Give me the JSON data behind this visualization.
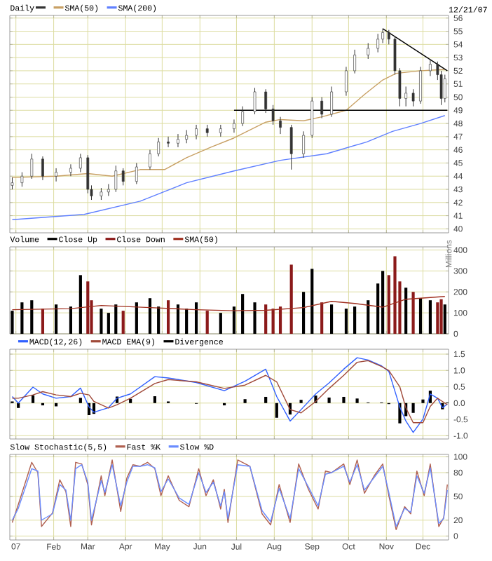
{
  "chart_data": [
    {
      "type": "candlestick",
      "title": "Daily",
      "color": "#333333",
      "legend": "top left",
      "grid": true,
      "tick_labels": "y",
      "annotations": [
        "12/21/07"
      ],
      "xlim": [
        "2006-12-27",
        "2007-12-22"
      ],
      "ylim": [
        39.7,
        56.2
      ],
      "yticks": [
        40,
        41,
        42,
        43,
        44,
        45,
        46,
        47,
        48,
        49,
        50,
        51,
        52,
        53,
        54,
        55,
        56
      ],
      "xticks": [
        {
          "value": "2007-01-01",
          "label": null
        },
        {
          "value": "2007-02-01",
          "label": null
        },
        {
          "value": "2007-03-01",
          "label": null
        },
        {
          "value": "2007-04-01",
          "label": null
        },
        {
          "value": "2007-05-01",
          "label": null
        },
        {
          "value": "2007-06-01",
          "label": null
        },
        {
          "value": "2007-07-01",
          "label": null
        },
        {
          "value": "2007-08-01",
          "label": null
        },
        {
          "value": "2007-09-01",
          "label": null
        },
        {
          "value": "2007-10-01",
          "label": null
        },
        {
          "value": "2007-11-01",
          "label": null
        },
        {
          "value": "2007-12-01",
          "label": null
        }
      ],
      "x": [
        "2006-12-29",
        "2007-01-06",
        "2007-01-14",
        "2007-01-23",
        "2007-02-03",
        "2007-02-15",
        "2007-02-23",
        "2007-03-01",
        "2007-03-04",
        "2007-03-12",
        "2007-03-18",
        "2007-03-24",
        "2007-03-30",
        "2007-04-10",
        "2007-04-21",
        "2007-04-28",
        "2007-05-06",
        "2007-05-14",
        "2007-05-21",
        "2007-05-29",
        "2007-06-07",
        "2007-06-18",
        "2007-06-29",
        "2007-07-06",
        "2007-07-16",
        "2007-07-25",
        "2007-07-31",
        "2007-08-06",
        "2007-08-15",
        "2007-08-25",
        "2007-09-01",
        "2007-09-09",
        "2007-09-17",
        "2007-09-29",
        "2007-10-06",
        "2007-10-17",
        "2007-10-25",
        "2007-10-29",
        "2007-11-03",
        "2007-11-08",
        "2007-11-12",
        "2007-11-17",
        "2007-11-23",
        "2007-11-29",
        "2007-12-07",
        "2007-12-13",
        "2007-12-16",
        "2007-12-19"
      ],
      "ohlc": [
        [
          43.3,
          43.9,
          43.0,
          43.5
        ],
        [
          43.5,
          44.3,
          43.2,
          44.0
        ],
        [
          44.0,
          45.7,
          43.8,
          45.3
        ],
        [
          45.3,
          45.5,
          43.7,
          44.0
        ],
        [
          44.0,
          44.6,
          43.6,
          44.3
        ],
        [
          44.3,
          44.9,
          44.0,
          44.6
        ],
        [
          44.6,
          45.7,
          44.3,
          45.4
        ],
        [
          45.4,
          45.6,
          42.7,
          43.0
        ],
        [
          43.0,
          43.3,
          42.2,
          42.5
        ],
        [
          42.5,
          43.1,
          42.2,
          42.8
        ],
        [
          42.8,
          43.4,
          42.5,
          43.0
        ],
        [
          43.0,
          44.8,
          42.8,
          44.4
        ],
        [
          44.4,
          44.6,
          43.3,
          43.6
        ],
        [
          43.6,
          45.0,
          43.4,
          44.7
        ],
        [
          44.7,
          46.0,
          44.5,
          45.7
        ],
        [
          45.7,
          46.9,
          45.5,
          46.6
        ],
        [
          46.6,
          47.0,
          46.2,
          46.5
        ],
        [
          46.5,
          47.2,
          46.2,
          46.8
        ],
        [
          46.8,
          47.5,
          46.5,
          47.1
        ],
        [
          47.1,
          47.9,
          46.8,
          47.6
        ],
        [
          47.6,
          47.9,
          47.0,
          47.3
        ],
        [
          47.3,
          47.9,
          47.0,
          47.6
        ],
        [
          47.6,
          48.3,
          47.3,
          48.0
        ],
        [
          48.0,
          49.3,
          47.8,
          48.9
        ],
        [
          48.9,
          50.7,
          48.7,
          50.4
        ],
        [
          50.4,
          50.6,
          48.8,
          49.1
        ],
        [
          49.1,
          49.4,
          47.9,
          48.2
        ],
        [
          48.2,
          48.5,
          47.2,
          47.7
        ],
        [
          47.7,
          47.9,
          44.5,
          45.7
        ],
        [
          45.7,
          47.4,
          45.4,
          47.1
        ],
        [
          47.1,
          50.0,
          46.9,
          49.7
        ],
        [
          49.7,
          50.0,
          48.4,
          48.7
        ],
        [
          48.7,
          50.8,
          48.5,
          50.4
        ],
        [
          50.4,
          52.3,
          50.1,
          52.0
        ],
        [
          52.0,
          53.6,
          51.8,
          53.2
        ],
        [
          53.2,
          54.1,
          52.9,
          53.7
        ],
        [
          53.7,
          54.8,
          53.4,
          54.4
        ],
        [
          54.4,
          55.2,
          54.1,
          54.9
        ],
        [
          54.9,
          55.1,
          54.0,
          54.4
        ],
        [
          54.4,
          54.6,
          51.7,
          52.0
        ],
        [
          52.0,
          52.2,
          49.3,
          49.9
        ],
        [
          49.9,
          50.8,
          49.3,
          50.3
        ],
        [
          50.3,
          50.6,
          49.3,
          49.7
        ],
        [
          49.7,
          52.3,
          49.5,
          52.0
        ],
        [
          52.0,
          52.8,
          51.6,
          52.5
        ],
        [
          52.5,
          52.7,
          51.3,
          51.7
        ],
        [
          51.7,
          52.0,
          49.4,
          49.9
        ],
        [
          49.9,
          51.7,
          49.6,
          51.4
        ]
      ],
      "series": [
        {
          "name": "SMA(50)",
          "type": "line",
          "color": "#c8a064",
          "x": [
            "2006-12-29",
            "2007-02-03",
            "2007-03-01",
            "2007-03-21",
            "2007-04-13",
            "2007-05-03",
            "2007-05-21",
            "2007-06-10",
            "2007-06-29",
            "2007-07-25",
            "2007-08-06",
            "2007-08-25",
            "2007-09-09",
            "2007-09-29",
            "2007-10-14",
            "2007-10-29",
            "2007-11-09",
            "2007-11-29",
            "2007-12-19"
          ],
          "values": [
            43.9,
            44.0,
            44.2,
            44.0,
            44.5,
            44.5,
            45.4,
            46.2,
            46.9,
            48.1,
            48.3,
            48.2,
            48.5,
            49.0,
            50.2,
            51.3,
            51.8,
            52.0,
            52.1
          ]
        },
        {
          "name": "SMA(200)",
          "type": "line",
          "color": "#6080ff",
          "x": [
            "2006-12-29",
            "2007-02-26",
            "2007-04-13",
            "2007-05-21",
            "2007-06-29",
            "2007-08-06",
            "2007-09-13",
            "2007-10-16",
            "2007-11-06",
            "2007-11-29",
            "2007-12-19"
          ],
          "values": [
            40.7,
            41.1,
            42.1,
            43.5,
            44.4,
            45.2,
            45.7,
            46.6,
            47.4,
            48.0,
            48.6
          ]
        },
        {
          "type": "line",
          "color": "#000000",
          "x": [
            "2007-06-29",
            "2007-12-21"
          ],
          "values": [
            49,
            49
          ]
        },
        {
          "type": "line",
          "color": "#000000",
          "x": [
            "2007-10-29",
            "2007-12-21"
          ],
          "values": [
            55.2,
            52.0
          ]
        }
      ]
    },
    {
      "type": "bar",
      "title": "Volume",
      "ylabel": "Millions",
      "legend": "top left",
      "grid": true,
      "tick_labels": "y",
      "xlim": [
        "2006-12-27",
        "2007-12-22"
      ],
      "ylim": [
        0,
        415
      ],
      "yticks": [
        0,
        100,
        200,
        300,
        400
      ],
      "xticks": [
        {
          "value": "2007-01-01",
          "label": null
        },
        {
          "value": "2007-02-01",
          "label": null
        },
        {
          "value": "2007-03-01",
          "label": null
        },
        {
          "value": "2007-04-01",
          "label": null
        },
        {
          "value": "2007-05-01",
          "label": null
        },
        {
          "value": "2007-06-01",
          "label": null
        },
        {
          "value": "2007-07-01",
          "label": null
        },
        {
          "value": "2007-08-01",
          "label": null
        },
        {
          "value": "2007-09-01",
          "label": null
        },
        {
          "value": "2007-10-01",
          "label": null
        },
        {
          "value": "2007-11-01",
          "label": null
        },
        {
          "value": "2007-12-01",
          "label": null
        }
      ],
      "series": [
        {
          "name": "Close Up",
          "color": "#000000",
          "x": [
            "2006-12-29",
            "2007-01-06",
            "2007-01-14",
            "2007-02-03",
            "2007-02-15",
            "2007-02-23",
            "2007-03-12",
            "2007-03-18",
            "2007-03-24",
            "2007-04-10",
            "2007-04-21",
            "2007-04-28",
            "2007-05-14",
            "2007-05-21",
            "2007-05-29",
            "2007-06-18",
            "2007-06-29",
            "2007-07-06",
            "2007-07-16",
            "2007-08-25",
            "2007-09-01",
            "2007-09-17",
            "2007-09-29",
            "2007-10-06",
            "2007-10-17",
            "2007-10-25",
            "2007-10-29",
            "2007-11-17",
            "2007-11-29",
            "2007-12-07",
            "2007-12-19"
          ],
          "values": [
            110,
            150,
            160,
            140,
            130,
            280,
            120,
            100,
            140,
            150,
            170,
            130,
            140,
            120,
            150,
            100,
            130,
            190,
            150,
            200,
            310,
            140,
            120,
            130,
            160,
            240,
            300,
            220,
            170,
            160,
            140
          ]
        },
        {
          "name": "Close Down",
          "color": "#8b1a1a",
          "x": [
            "2007-01-23",
            "2007-03-01",
            "2007-03-04",
            "2007-03-30",
            "2007-05-06",
            "2007-06-07",
            "2007-07-25",
            "2007-07-31",
            "2007-08-06",
            "2007-08-15",
            "2007-09-09",
            "2007-11-03",
            "2007-11-08",
            "2007-11-12",
            "2007-11-23",
            "2007-12-13",
            "2007-12-16"
          ],
          "values": [
            120,
            250,
            160,
            110,
            160,
            110,
            140,
            120,
            130,
            330,
            150,
            280,
            370,
            250,
            200,
            150,
            165
          ]
        },
        {
          "name": "SMA(50)",
          "type": "line",
          "color": "#a03020",
          "x": [
            "2006-12-29",
            "2007-02-15",
            "2007-03-12",
            "2007-04-21",
            "2007-05-29",
            "2007-06-29",
            "2007-07-25",
            "2007-08-25",
            "2007-09-17",
            "2007-10-06",
            "2007-10-29",
            "2007-11-17",
            "2007-12-19"
          ],
          "values": [
            115,
            120,
            135,
            125,
            115,
            110,
            112,
            125,
            155,
            145,
            127,
            165,
            178
          ]
        }
      ]
    },
    {
      "type": "line",
      "legend": "top left",
      "grid": true,
      "tick_labels": "y",
      "xlim": [
        "2006-12-27",
        "2007-12-22"
      ],
      "ylim": [
        -1.1,
        1.65
      ],
      "yticks": [
        {
          "value": -1,
          "label": "-1.0"
        },
        {
          "value": -0.5,
          "label": "-0.5"
        },
        {
          "value": 0,
          "label": "0.0"
        },
        {
          "value": 0.5,
          "label": "0.5"
        },
        {
          "value": 1,
          "label": "1.0"
        },
        {
          "value": 1.5,
          "label": "1.5"
        }
      ],
      "xticks": [
        {
          "value": "2007-01-01",
          "label": null
        },
        {
          "value": "2007-02-01",
          "label": null
        },
        {
          "value": "2007-03-01",
          "label": null
        },
        {
          "value": "2007-04-01",
          "label": null
        },
        {
          "value": "2007-05-01",
          "label": null
        },
        {
          "value": "2007-06-01",
          "label": null
        },
        {
          "value": "2007-07-01",
          "label": null
        },
        {
          "value": "2007-08-01",
          "label": null
        },
        {
          "value": "2007-09-01",
          "label": null
        },
        {
          "value": "2007-10-01",
          "label": null
        },
        {
          "value": "2007-11-01",
          "label": null
        },
        {
          "value": "2007-12-01",
          "label": null
        }
      ],
      "x": [
        "2006-12-29",
        "2007-01-03",
        "2007-01-15",
        "2007-01-23",
        "2007-02-03",
        "2007-02-15",
        "2007-02-23",
        "2007-03-02",
        "2007-03-06",
        "2007-03-18",
        "2007-03-25",
        "2007-04-05",
        "2007-04-25",
        "2007-05-06",
        "2007-05-29",
        "2007-06-21",
        "2007-07-08",
        "2007-07-25",
        "2007-08-03",
        "2007-08-14",
        "2007-08-23",
        "2007-09-04",
        "2007-09-15",
        "2007-09-27",
        "2007-10-08",
        "2007-10-17",
        "2007-10-28",
        "2007-11-03",
        "2007-11-12",
        "2007-11-17",
        "2007-11-23",
        "2007-12-01",
        "2007-12-07",
        "2007-12-13",
        "2007-12-17",
        "2007-12-21"
      ],
      "series": [
        {
          "name": "MACD(12,26)",
          "color": "#3060ff",
          "values": [
            0.2,
            0.0,
            0.49,
            0.28,
            0.15,
            0.2,
            0.46,
            -0.12,
            -0.28,
            -0.14,
            0.15,
            0.28,
            0.81,
            0.77,
            0.63,
            0.38,
            0.67,
            1.04,
            0.2,
            -0.55,
            -0.2,
            0.28,
            0.62,
            1.04,
            1.39,
            1.32,
            1.14,
            0.97,
            -0.12,
            -0.55,
            -0.9,
            -0.49,
            0.28,
            0.15,
            -0.14,
            -0.03
          ]
        },
        {
          "name": "MACD EMA(9)",
          "color": "#a04a3a",
          "values": [
            0.15,
            0.15,
            0.25,
            0.35,
            0.25,
            0.2,
            0.3,
            0.25,
            0.05,
            -0.15,
            -0.05,
            0.15,
            0.6,
            0.72,
            0.65,
            0.45,
            0.55,
            0.85,
            0.65,
            -0.2,
            -0.3,
            0.05,
            0.45,
            0.85,
            1.25,
            1.3,
            1.12,
            1.0,
            0.5,
            -0.15,
            -0.6,
            -0.6,
            -0.1,
            0.15,
            0.05,
            -0.05
          ]
        },
        {
          "name": "Divergence",
          "type": "bar",
          "color": "#000000",
          "values": [
            0.05,
            -0.15,
            0.24,
            -0.07,
            -0.1,
            0.0,
            0.16,
            -0.37,
            -0.33,
            null,
            0.2,
            0.13,
            0.21,
            0.05,
            -0.02,
            -0.07,
            0.12,
            0.19,
            -0.45,
            -0.35,
            0.1,
            0.23,
            0.17,
            0.19,
            0.14,
            0.02,
            0.02,
            -0.03,
            -0.62,
            -0.4,
            -0.3,
            0.11,
            0.38,
            0.0,
            -0.19,
            0.02
          ]
        }
      ]
    },
    {
      "type": "line",
      "title": "Slow Stochastic(5,5)",
      "legend": "top left",
      "grid": true,
      "xlim": [
        "2006-12-27",
        "2007-12-22"
      ],
      "ylim": [
        -5,
        103
      ],
      "yticks": [
        0,
        20,
        50,
        80,
        100
      ],
      "xticks": [
        {
          "value": "2007-01-01",
          "label": "07"
        },
        {
          "value": "2007-02-01",
          "label": "Feb"
        },
        {
          "value": "2007-03-01",
          "label": "Mar"
        },
        {
          "value": "2007-04-01",
          "label": "Apr"
        },
        {
          "value": "2007-05-01",
          "label": "May"
        },
        {
          "value": "2007-06-01",
          "label": "Jun"
        },
        {
          "value": "2007-07-01",
          "label": "Jul"
        },
        {
          "value": "2007-08-01",
          "label": "Aug"
        },
        {
          "value": "2007-09-01",
          "label": "Sep"
        },
        {
          "value": "2007-10-01",
          "label": "Oct"
        },
        {
          "value": "2007-11-01",
          "label": "Nov"
        },
        {
          "value": "2007-12-01",
          "label": "Dec"
        }
      ],
      "x": [
        "2006-12-29",
        "2007-01-03",
        "2007-01-14",
        "2007-01-19",
        "2007-01-22",
        "2007-01-31",
        "2007-02-06",
        "2007-02-11",
        "2007-02-15",
        "2007-02-19",
        "2007-02-24",
        "2007-03-01",
        "2007-03-04",
        "2007-03-12",
        "2007-03-15",
        "2007-03-21",
        "2007-03-28",
        "2007-04-02",
        "2007-04-07",
        "2007-04-13",
        "2007-04-19",
        "2007-04-25",
        "2007-04-30",
        "2007-05-06",
        "2007-05-15",
        "2007-05-23",
        "2007-05-31",
        "2007-06-06",
        "2007-06-12",
        "2007-06-18",
        "2007-06-21",
        "2007-06-24",
        "2007-07-02",
        "2007-07-12",
        "2007-07-22",
        "2007-07-29",
        "2007-08-05",
        "2007-08-14",
        "2007-08-21",
        "2007-08-29",
        "2007-09-06",
        "2007-09-12",
        "2007-09-17",
        "2007-09-27",
        "2007-10-02",
        "2007-10-08",
        "2007-10-14",
        "2007-10-22",
        "2007-10-29",
        "2007-11-03",
        "2007-11-09",
        "2007-11-16",
        "2007-11-21",
        "2007-11-26",
        "2007-12-02",
        "2007-12-07",
        "2007-12-14",
        "2007-12-18",
        "2007-12-21"
      ],
      "series": [
        {
          "name": "Fast %K",
          "color": "#b06050",
          "values": [
            17,
            40,
            93,
            80,
            12,
            29,
            71,
            56,
            12,
            93,
            91,
            65,
            14,
            76,
            51,
            96,
            31,
            73,
            90,
            88,
            93,
            85,
            51,
            76,
            45,
            37,
            85,
            51,
            71,
            34,
            59,
            17,
            96,
            88,
            28,
            14,
            65,
            17,
            91,
            59,
            34,
            82,
            80,
            91,
            65,
            96,
            54,
            76,
            91,
            51,
            8,
            37,
            28,
            82,
            51,
            91,
            12,
            23,
            65
          ]
        },
        {
          "name": "Slow %D",
          "color": "#6a8cff",
          "values": [
            20,
            35,
            85,
            82,
            20,
            28,
            65,
            58,
            20,
            85,
            90,
            68,
            20,
            70,
            55,
            90,
            38,
            68,
            88,
            88,
            90,
            86,
            56,
            72,
            48,
            40,
            80,
            55,
            68,
            38,
            56,
            22,
            90,
            88,
            32,
            18,
            60,
            22,
            85,
            62,
            38,
            78,
            80,
            88,
            68,
            90,
            58,
            74,
            88,
            55,
            12,
            35,
            30,
            76,
            54,
            86,
            16,
            22,
            58
          ]
        }
      ]
    }
  ]
}
